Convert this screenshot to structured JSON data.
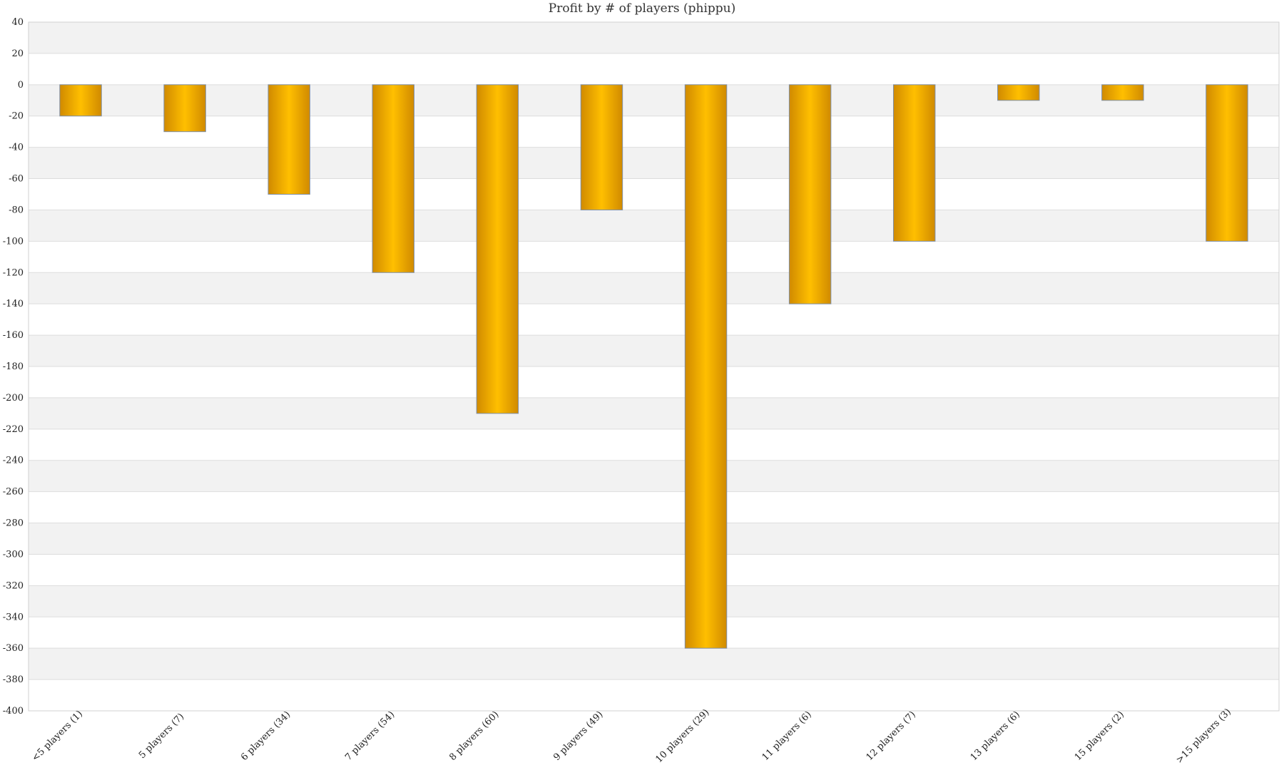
{
  "chart_data": {
    "type": "bar",
    "title": "Profit by # of players  (phippu)",
    "xlabel": "",
    "ylabel": "",
    "categories": [
      "<5 players (1)",
      "5 players (7)",
      "6 players (34)",
      "7 players (54)",
      "8 players (60)",
      "9 players (49)",
      "10 players (29)",
      "11 players (6)",
      "12 players (7)",
      "13 players (6)",
      "15 players (2)",
      ">15 players (3)"
    ],
    "values": [
      -20,
      -30,
      -70,
      -120,
      -210,
      -80,
      -360,
      -140,
      -100,
      -10,
      -10,
      -100
    ],
    "ylim": [
      -400,
      40
    ],
    "ytick_step": 20,
    "grid": "horizontal bands",
    "legend": "none",
    "colors": {
      "bar_edge": "#d08a00",
      "bar_center": "#ffbf00",
      "bar_outline": "#7f8fa6",
      "band": "#f2f2f2",
      "gridline": "#dddddd"
    }
  }
}
